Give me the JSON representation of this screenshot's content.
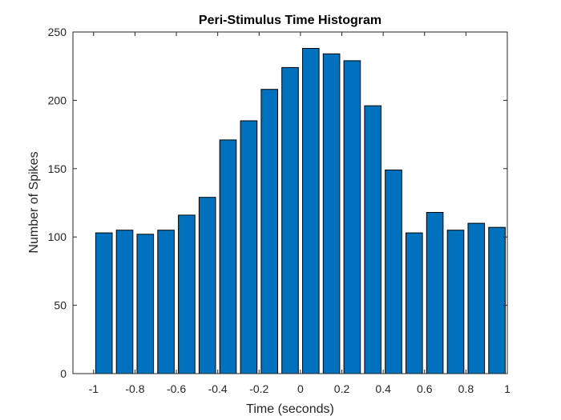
{
  "chart_data": {
    "type": "bar",
    "title": "Peri-Stimulus Time Histogram",
    "xlabel": "Time (seconds)",
    "ylabel": "Number of Spikes",
    "x": [
      -0.95,
      -0.85,
      -0.75,
      -0.65,
      -0.55,
      -0.45,
      -0.35,
      -0.25,
      -0.15,
      -0.05,
      0.05,
      0.15,
      0.25,
      0.35,
      0.45,
      0.55,
      0.65,
      0.75,
      0.85,
      0.95
    ],
    "values": [
      103,
      105,
      102,
      105,
      116,
      129,
      171,
      185,
      208,
      224,
      238,
      234,
      229,
      196,
      149,
      103,
      118,
      105,
      110,
      107
    ],
    "xlim": [
      -1.1,
      1.0
    ],
    "ylim": [
      0,
      250
    ],
    "xticks": [
      -1,
      -0.8,
      -0.6,
      -0.4,
      -0.2,
      0,
      0.2,
      0.4,
      0.6,
      0.8,
      1
    ],
    "xtick_labels": [
      "-1",
      "-0.8",
      "-0.6",
      "-0.4",
      "-0.2",
      "0",
      "0.2",
      "0.4",
      "0.6",
      "0.8",
      "1"
    ],
    "yticks": [
      0,
      50,
      100,
      150,
      200,
      250
    ],
    "ytick_labels": [
      "0",
      "50",
      "100",
      "150",
      "200",
      "250"
    ],
    "grid": false,
    "colors": {
      "bar": "#0072BD",
      "edge": "#000000"
    }
  }
}
